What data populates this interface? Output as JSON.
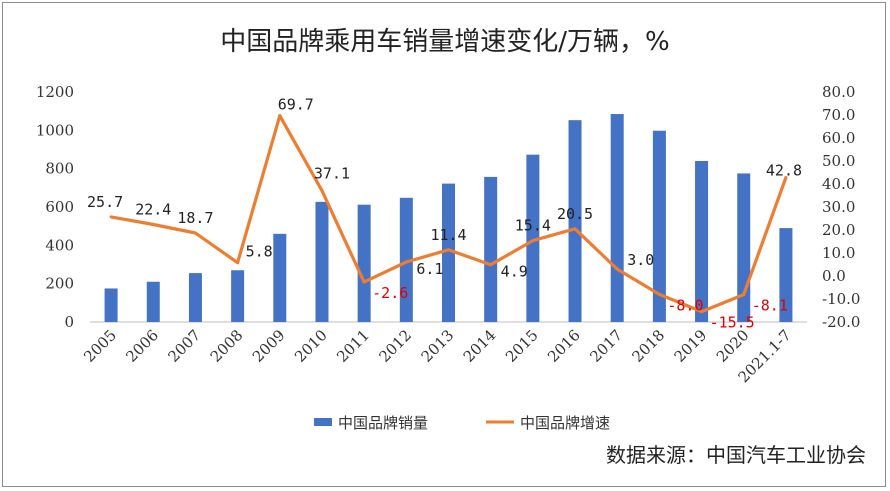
{
  "chart_data": {
    "type": "bar+line",
    "title": "中国品牌乘用车销量增速变化/万辆，%",
    "categories": [
      "2005",
      "2006",
      "2007",
      "2008",
      "2009",
      "2010",
      "2011",
      "2012",
      "2013",
      "2014",
      "2015",
      "2016",
      "2017",
      "2018",
      "2019",
      "2020",
      "2021.1-7"
    ],
    "series": [
      {
        "name": "中国品牌销量",
        "type": "bar",
        "axis": "left",
        "values": [
          175,
          210,
          255,
          270,
          460,
          627,
          612,
          648,
          722,
          757,
          873,
          1053,
          1085,
          998,
          840,
          775,
          490
        ]
      },
      {
        "name": "中国品牌增速",
        "type": "line",
        "axis": "right",
        "values": [
          25.7,
          22.4,
          18.7,
          5.8,
          69.7,
          37.1,
          -2.6,
          6.1,
          11.4,
          4.9,
          15.4,
          20.5,
          3.0,
          -8.0,
          -15.5,
          -8.1,
          42.8
        ],
        "labels": [
          "25.7",
          "22.4",
          "18.7",
          "5.8",
          "69.7",
          "37.1",
          "-2.6",
          "6.1",
          "11.4",
          "4.9",
          "15.4",
          "20.5",
          "3.0",
          "-8.0",
          "-15.5",
          "-8.1",
          "42.8"
        ]
      }
    ],
    "y_left": {
      "min": 0,
      "max": 1200,
      "ticks": [
        "0",
        "200",
        "400",
        "600",
        "800",
        "1000",
        "1200"
      ]
    },
    "y_right": {
      "min": -20,
      "max": 80,
      "ticks": [
        "-20.0",
        "-10.0",
        "0.0",
        "10.0",
        "20.0",
        "30.0",
        "40.0",
        "50.0",
        "60.0",
        "70.0",
        "80.0"
      ]
    },
    "grid": false,
    "legend_position": "bottom",
    "colors": {
      "bar": "#4472C4",
      "line": "#ED7D31",
      "label_pos": "#222222",
      "label_neg": "#E00000"
    }
  },
  "source_text": "数据来源：中国汽车工业协会"
}
